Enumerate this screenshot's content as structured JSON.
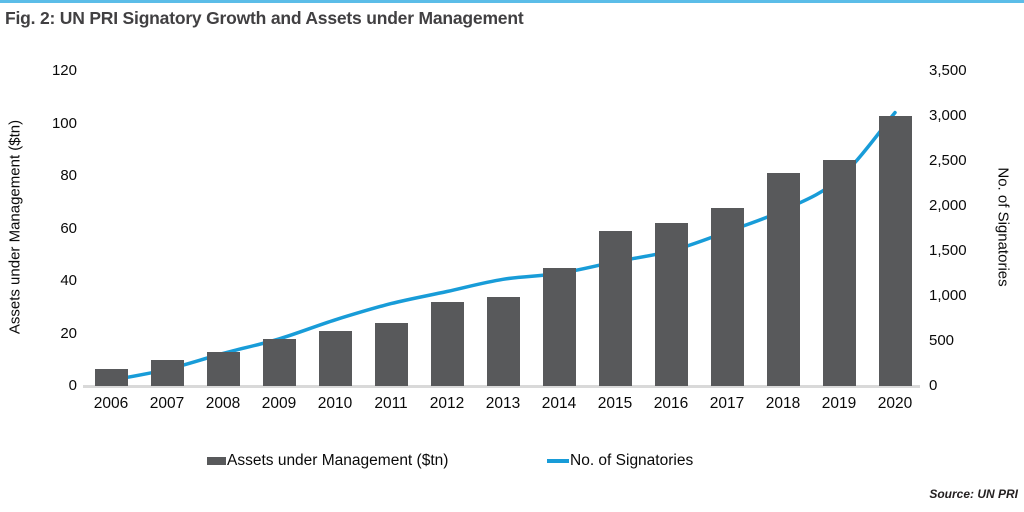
{
  "figure": {
    "title": "Fig. 2: UN PRI Signatory Growth and Assets under Management",
    "source": "Source: UN PRI"
  },
  "chart_data": {
    "type": "bar",
    "subtype": "combo-bar-line-dual-axis",
    "categories": [
      "2006",
      "2007",
      "2008",
      "2009",
      "2010",
      "2011",
      "2012",
      "2013",
      "2014",
      "2015",
      "2016",
      "2017",
      "2018",
      "2019",
      "2020"
    ],
    "series": [
      {
        "name": "Assets under Management ($tn)",
        "type": "bar",
        "axis": "left",
        "color": "#58595B",
        "values": [
          6.5,
          10,
          13,
          18,
          21,
          24,
          32,
          34,
          45,
          59,
          62,
          68,
          81,
          86,
          103
        ]
      },
      {
        "name": "No. of Signatories",
        "type": "line",
        "axis": "right",
        "color": "#189CD8",
        "values": [
          63,
          185,
          361,
          523,
          734,
          915,
          1050,
          1186,
          1251,
          1380,
          1501,
          1714,
          1951,
          2301,
          3038
        ]
      }
    ],
    "left_axis": {
      "label": "Assets under Management ($tn)",
      "min": 0,
      "max": 120,
      "step": 20,
      "ticks": [
        "0",
        "20",
        "40",
        "60",
        "80",
        "100",
        "120"
      ]
    },
    "right_axis": {
      "label": "No. of Signatories",
      "min": 0,
      "max": 3500,
      "step": 500,
      "ticks": [
        "0",
        "500",
        "1,000",
        "1,500",
        "2,000",
        "2,500",
        "3,000",
        "3,500"
      ]
    },
    "grid": false,
    "legend_position": "bottom"
  },
  "legend": {
    "items": [
      {
        "label": "Assets under Management ($tn)",
        "swatch": "bar"
      },
      {
        "label": "No. of Signatories",
        "swatch": "line"
      }
    ]
  },
  "colors": {
    "bar": "#58595B",
    "line": "#189CD8",
    "top_border": "#5BBDE8",
    "axis_line": "#D9D9D9",
    "title": "#414042",
    "text": "#0a0a0a"
  }
}
